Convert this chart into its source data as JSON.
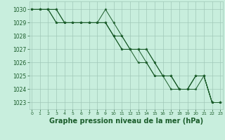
{
  "background_color": "#c8eedd",
  "grid_color": "#a0c8b8",
  "line_color": "#1a5c2a",
  "xlabel": "Graphe pression niveau de la mer (hPa)",
  "xlabel_fontsize": 7,
  "xlim": [
    -0.3,
    23.3
  ],
  "ylim": [
    1022.5,
    1030.6
  ],
  "yticks": [
    1023,
    1024,
    1025,
    1026,
    1027,
    1028,
    1029,
    1030
  ],
  "xticks": [
    0,
    1,
    2,
    3,
    4,
    5,
    6,
    7,
    8,
    9,
    10,
    11,
    12,
    13,
    14,
    15,
    16,
    17,
    18,
    19,
    20,
    21,
    22,
    23
  ],
  "series": [
    {
      "y": [
        1030,
        1030,
        1030,
        1030,
        1029,
        1029,
        1029,
        1029,
        1029,
        1030,
        1029,
        1028,
        1027,
        1027,
        1027,
        1026,
        1025,
        1025,
        1024,
        1024,
        1025,
        1025,
        1023,
        1023
      ]
    },
    {
      "y": [
        1030,
        1030,
        1030,
        1030,
        1029,
        1029,
        1029,
        1029,
        1029,
        1029,
        1028,
        1028,
        1027,
        1027,
        1027,
        1026,
        1025,
        1025,
        1024,
        1024,
        1025,
        1025,
        1023,
        1023
      ]
    },
    {
      "y": [
        1030,
        1030,
        1030,
        1029,
        1029,
        1029,
        1029,
        1029,
        1029,
        1029,
        1028,
        1027,
        1027,
        1027,
        1026,
        1025,
        1025,
        1025,
        1024,
        1024,
        1025,
        1025,
        1023,
        1023
      ]
    },
    {
      "y": [
        1030,
        1030,
        1030,
        1029,
        1029,
        1029,
        1029,
        1029,
        1029,
        1029,
        1028,
        1027,
        1027,
        1026,
        1026,
        1025,
        1025,
        1024,
        1024,
        1024,
        1024,
        1025,
        1023,
        1023
      ]
    }
  ],
  "figsize": [
    3.2,
    2.0
  ],
  "dpi": 100,
  "linewidth": 0.7,
  "markersize": 2.5
}
